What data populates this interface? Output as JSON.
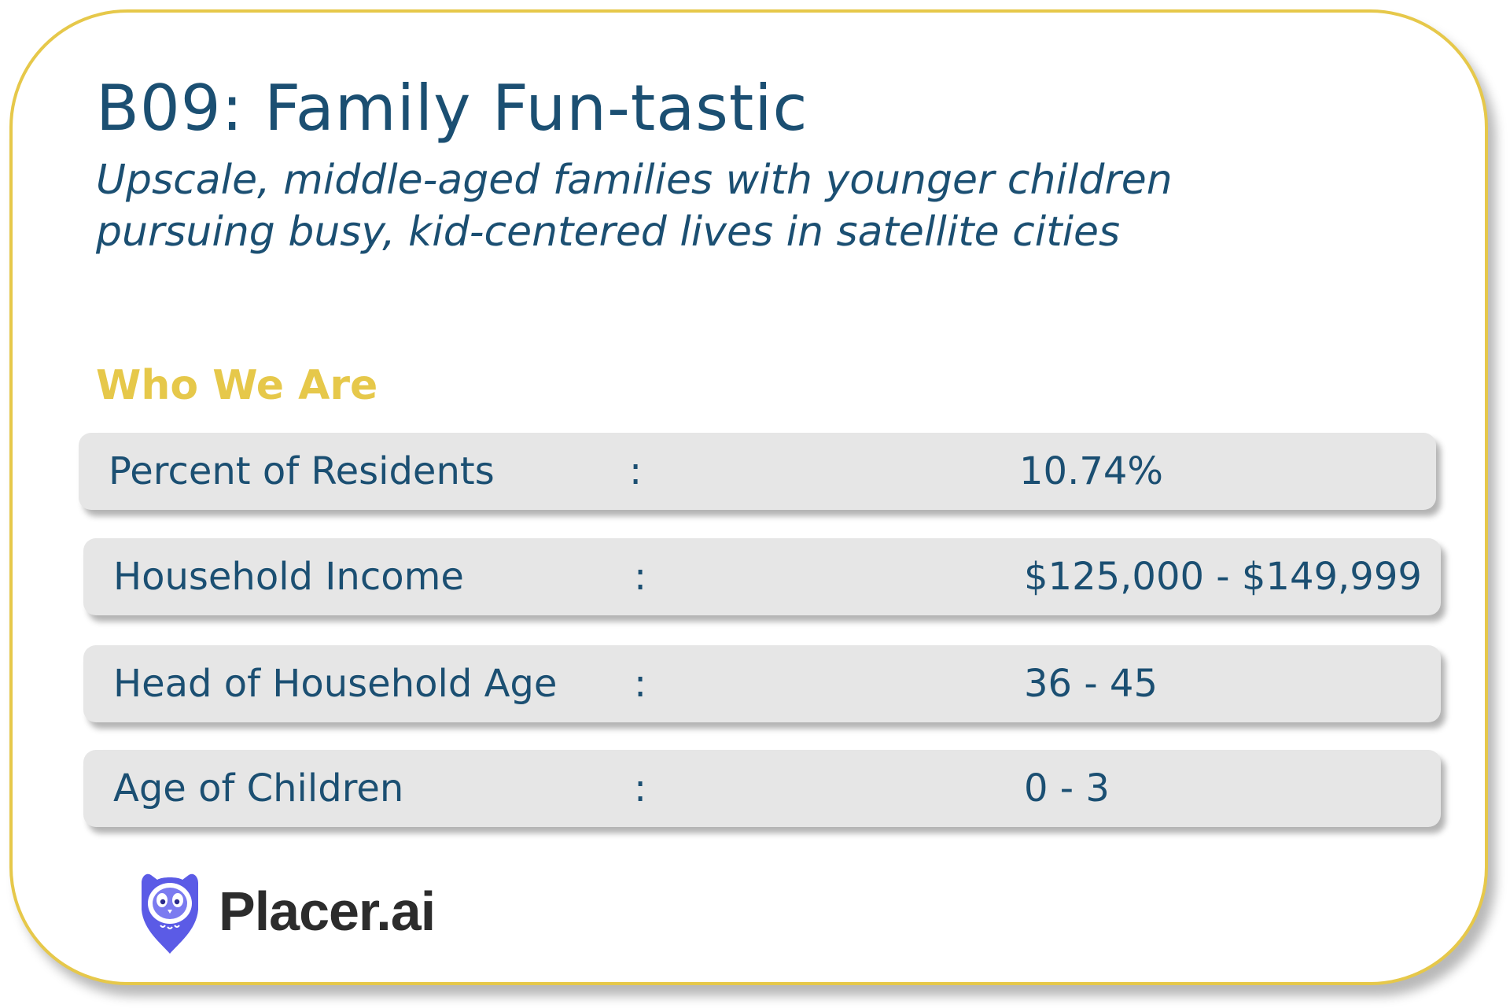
{
  "header": {
    "title": "B09: Family Fun-tastic",
    "subtitle_line1": "Upscale, middle-aged families with younger children",
    "subtitle_line2": "pursuing busy, kid-centered lives in satellite cities"
  },
  "section": {
    "heading": "Who We Are"
  },
  "stats": [
    {
      "label": "Percent of Residents",
      "separator": ":",
      "value": "10.74%"
    },
    {
      "label": "Household Income",
      "separator": ":",
      "value": "$125,000 - $149,999"
    },
    {
      "label": "Head of Household Age",
      "separator": ":",
      "value": "36 - 45"
    },
    {
      "label": "Age of Children",
      "separator": ":",
      "value": "0 - 3"
    }
  ],
  "brand": {
    "logo_text": "Placer.ai",
    "icon": "owl-pin-icon",
    "icon_color": "#5b5be6",
    "accent_color": "#e6c84a",
    "text_color": "#1b4f72"
  }
}
